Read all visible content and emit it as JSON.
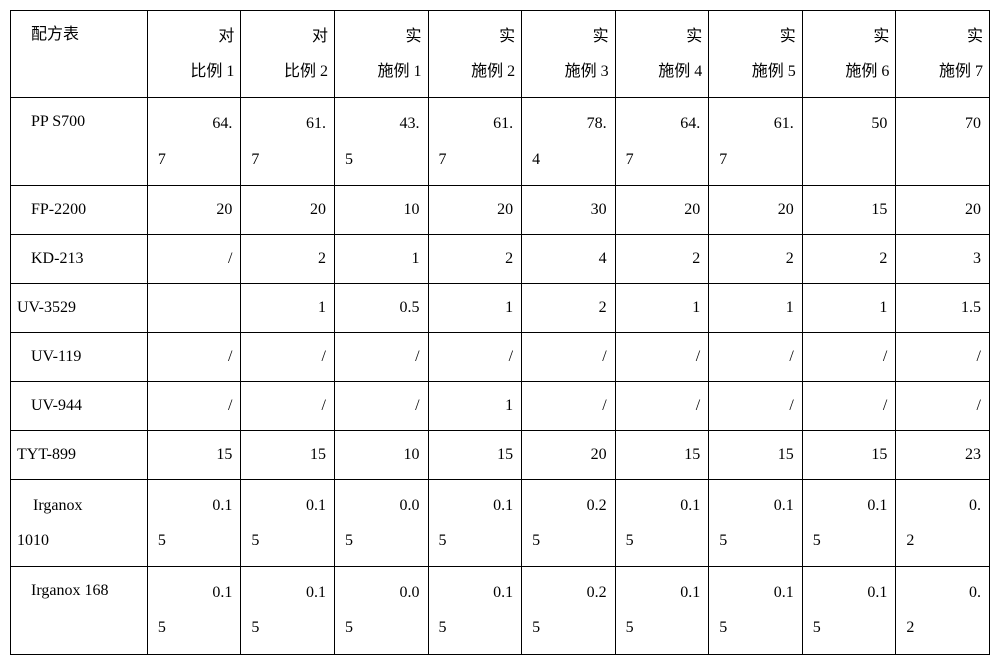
{
  "table": {
    "headers": [
      "配方表",
      "对比例 1",
      "对比例 2",
      "实施例 1",
      "实施例 2",
      "实施例 3",
      "实施例 4",
      "实施例 5",
      "实施例 6",
      "实施例 7"
    ],
    "rows": [
      {
        "label": "PP S700",
        "label_align": "center-indent",
        "tall": true,
        "wrap": true,
        "cells": [
          "64.7",
          "61.7",
          "43.5",
          "61.7",
          "78.4",
          "64.7",
          "61.7",
          "50",
          "70"
        ]
      },
      {
        "label": "FP-2200",
        "label_align": "center-indent",
        "tall": false,
        "wrap": false,
        "cells": [
          "20",
          "20",
          "10",
          "20",
          "30",
          "20",
          "20",
          "15",
          "20"
        ]
      },
      {
        "label": "KD-213",
        "label_align": "center-indent",
        "tall": false,
        "wrap": false,
        "cells": [
          "/",
          "2",
          "1",
          "2",
          "4",
          "2",
          "2",
          "2",
          "3"
        ]
      },
      {
        "label": "UV-3529",
        "label_align": "left",
        "tall": false,
        "wrap": false,
        "cells": [
          "",
          "1",
          "0.5",
          "1",
          "2",
          "1",
          "1",
          "1",
          "1.5"
        ]
      },
      {
        "label": "UV-119",
        "label_align": "center-indent",
        "tall": false,
        "wrap": false,
        "cells": [
          "/",
          "/",
          "/",
          "/",
          "/",
          "/",
          "/",
          "/",
          "/"
        ]
      },
      {
        "label": "UV-944",
        "label_align": "center-indent",
        "tall": false,
        "wrap": false,
        "cells": [
          "/",
          "/",
          "/",
          "1",
          "/",
          "/",
          "/",
          "/",
          "/"
        ]
      },
      {
        "label": "TYT-899",
        "label_align": "left",
        "tall": false,
        "wrap": false,
        "cells": [
          "15",
          "15",
          "10",
          "15",
          "20",
          "15",
          "15",
          "15",
          "23"
        ]
      },
      {
        "label": "Irganox 1010",
        "label_align": "center-indent-wrap",
        "tall": true,
        "wrap": true,
        "cells": [
          "0.15",
          "0.15",
          "0.05",
          "0.15",
          "0.25",
          "0.15",
          "0.15",
          "0.15",
          "0.2"
        ]
      },
      {
        "label": "Irganox 168",
        "label_align": "center-indent",
        "tall": true,
        "wrap": true,
        "cells": [
          "0.15",
          "0.15",
          "0.05",
          "0.15",
          "0.25",
          "0.15",
          "0.15",
          "0.15",
          "0.2"
        ]
      }
    ],
    "border_color": "#000000",
    "background_color": "#ffffff",
    "text_color": "#000000",
    "font_size": 16
  }
}
